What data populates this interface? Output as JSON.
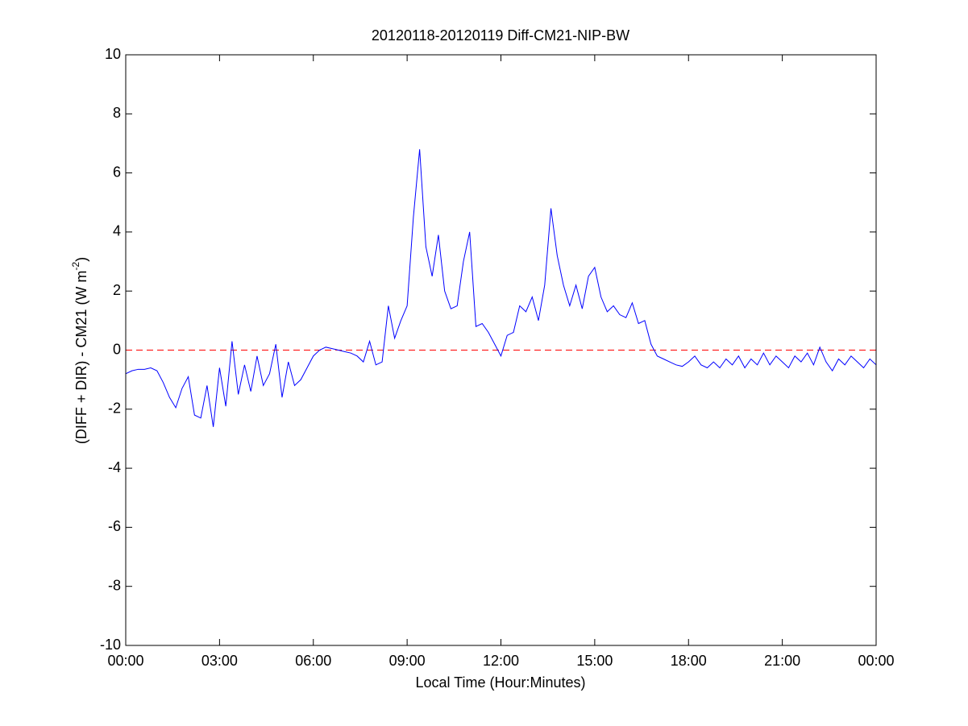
{
  "chart_data": {
    "type": "line",
    "title": "20120118-20120119 Diff-CM21-NIP-BW",
    "xlabel": "Local Time (Hour:Minutes)",
    "ylabel": {
      "text": "(DIFF + DIR) - CM21 (W m",
      "sup": "-2",
      "end": ")"
    },
    "x": [
      0,
      0.2,
      0.4,
      0.6,
      0.8,
      1,
      1.2,
      1.4,
      1.6,
      1.8,
      2,
      2.2,
      2.4,
      2.6,
      2.8,
      3,
      3.2,
      3.4,
      3.6,
      3.8,
      4,
      4.2,
      4.4,
      4.6,
      4.8,
      5,
      5.2,
      5.4,
      5.6,
      5.8,
      6,
      6.2,
      6.4,
      6.6,
      6.8,
      7,
      7.2,
      7.4,
      7.6,
      7.8,
      8,
      8.2,
      8.4,
      8.6,
      8.8,
      9,
      9.2,
      9.4,
      9.6,
      9.8,
      10,
      10.2,
      10.4,
      10.6,
      10.8,
      11,
      11.2,
      11.4,
      11.6,
      11.8,
      12,
      12.2,
      12.4,
      12.6,
      12.8,
      13,
      13.2,
      13.4,
      13.6,
      13.8,
      14,
      14.2,
      14.4,
      14.6,
      14.8,
      15,
      15.2,
      15.4,
      15.6,
      15.8,
      16,
      16.2,
      16.4,
      16.6,
      16.8,
      17,
      17.2,
      17.4,
      17.6,
      17.8,
      18,
      18.2,
      18.4,
      18.6,
      18.8,
      19,
      19.2,
      19.4,
      19.6,
      19.8,
      20,
      20.2,
      20.4,
      20.6,
      20.8,
      21,
      21.2,
      21.4,
      21.6,
      21.8,
      22,
      22.2,
      22.4,
      22.6,
      22.8,
      23,
      23.2,
      23.4,
      23.6,
      23.8,
      24
    ],
    "series": [
      {
        "color": "#0000ff",
        "values": [
          -0.8,
          -0.7,
          -0.65,
          -0.65,
          -0.6,
          -0.7,
          -1.1,
          -1.6,
          -1.95,
          -1.3,
          -0.9,
          -2.2,
          -2.3,
          -1.2,
          -2.6,
          -0.6,
          -1.9,
          0.3,
          -1.5,
          -0.5,
          -1.4,
          -0.2,
          -1.2,
          -0.8,
          0.2,
          -1.6,
          -0.4,
          -1.2,
          -1.0,
          -0.6,
          -0.2,
          0.0,
          0.1,
          0.05,
          0.0,
          -0.05,
          -0.1,
          -0.2,
          -0.4,
          0.3,
          -0.5,
          -0.4,
          1.5,
          0.4,
          1.0,
          1.5,
          4.5,
          6.8,
          3.5,
          2.5,
          3.9,
          2.0,
          1.4,
          1.5,
          3.0,
          4.0,
          0.8,
          0.9,
          0.6,
          0.2,
          -0.2,
          0.5,
          0.6,
          1.5,
          1.3,
          1.8,
          1.0,
          2.2,
          4.8,
          3.2,
          2.2,
          1.5,
          2.2,
          1.4,
          2.5,
          2.8,
          1.8,
          1.3,
          1.5,
          1.2,
          1.1,
          1.6,
          0.9,
          1.0,
          0.2,
          -0.2,
          -0.3,
          -0.4,
          -0.5,
          -0.55,
          -0.4,
          -0.2,
          -0.5,
          -0.6,
          -0.4,
          -0.6,
          -0.3,
          -0.5,
          -0.2,
          -0.6,
          -0.3,
          -0.5,
          -0.1,
          -0.5,
          -0.2,
          -0.4,
          -0.6,
          -0.2,
          -0.4,
          -0.1,
          -0.5,
          0.1,
          -0.4,
          -0.7,
          -0.3,
          -0.5,
          -0.2,
          -0.4,
          -0.6,
          -0.3,
          -0.5
        ]
      }
    ],
    "reference_line": {
      "value": 0,
      "color": "#ff0000"
    },
    "xlim": [
      0,
      24
    ],
    "xticks": [
      {
        "value": 0,
        "label": "00:00"
      },
      {
        "value": 3,
        "label": "03:00"
      },
      {
        "value": 6,
        "label": "06:00"
      },
      {
        "value": 9,
        "label": "09:00"
      },
      {
        "value": 12,
        "label": "12:00"
      },
      {
        "value": 15,
        "label": "15:00"
      },
      {
        "value": 18,
        "label": "18:00"
      },
      {
        "value": 21,
        "label": "21:00"
      },
      {
        "value": 24,
        "label": "00:00"
      }
    ],
    "ylim": [
      -10,
      10
    ],
    "yticks": [
      -10,
      -8,
      -6,
      -4,
      -2,
      0,
      2,
      4,
      6,
      8,
      10
    ],
    "grid": false
  }
}
